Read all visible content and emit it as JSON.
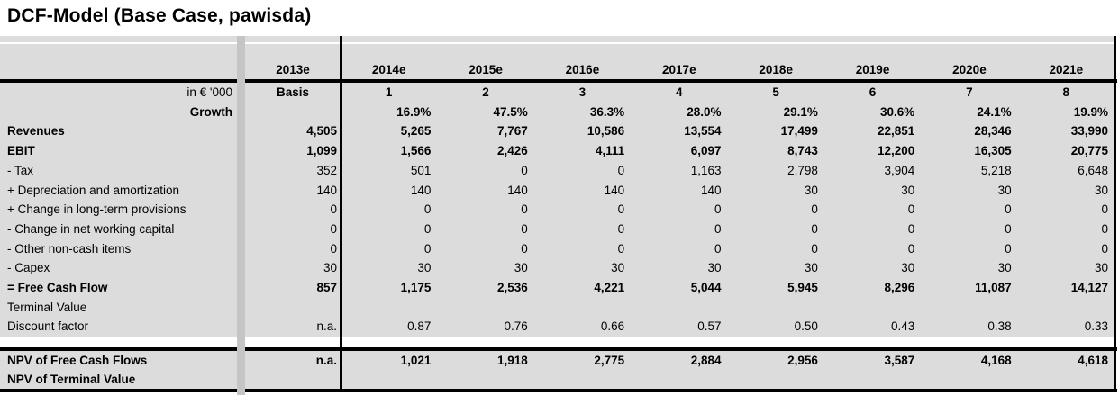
{
  "title": "DCF-Model (Base Case, pawisda)",
  "colors": {
    "cell_bg": "#dcdcdc",
    "spacer_band": "#c5c5c5",
    "rule": "#000000",
    "text": "#000000",
    "page_bg": "#ffffff"
  },
  "table": {
    "unit_label": "in € '000",
    "columns": [
      "2013e",
      "2014e",
      "2015e",
      "2016e",
      "2017e",
      "2018e",
      "2019e",
      "2020e",
      "2021e"
    ],
    "periods": [
      "Basis",
      "1",
      "2",
      "3",
      "4",
      "5",
      "6",
      "7",
      "8"
    ],
    "rows": [
      {
        "label": "Growth",
        "label_bold": true,
        "label_right": true,
        "values_bold": true,
        "values": [
          "",
          "16.9%",
          "47.5%",
          "36.3%",
          "28.0%",
          "29.1%",
          "30.6%",
          "24.1%",
          "19.9%"
        ]
      },
      {
        "label": "Revenues",
        "label_bold": true,
        "values_bold": true,
        "values": [
          "4,505",
          "5,265",
          "7,767",
          "10,586",
          "13,554",
          "17,499",
          "22,851",
          "28,346",
          "33,990"
        ]
      },
      {
        "label": "EBIT",
        "label_bold": true,
        "values_bold": true,
        "values": [
          "1,099",
          "1,566",
          "2,426",
          "4,111",
          "6,097",
          "8,743",
          "12,200",
          "16,305",
          "20,775"
        ]
      },
      {
        "label": "- Tax",
        "values": [
          "352",
          "501",
          "0",
          "0",
          "1,163",
          "2,798",
          "3,904",
          "5,218",
          "6,648"
        ]
      },
      {
        "label": "+ Depreciation and amortization",
        "values": [
          "140",
          "140",
          "140",
          "140",
          "140",
          "30",
          "30",
          "30",
          "30"
        ]
      },
      {
        "label": "+ Change in long-term provisions",
        "values": [
          "0",
          "0",
          "0",
          "0",
          "0",
          "0",
          "0",
          "0",
          "0"
        ]
      },
      {
        "label": "- Change in net working capital",
        "values": [
          "0",
          "0",
          "0",
          "0",
          "0",
          "0",
          "0",
          "0",
          "0"
        ]
      },
      {
        "label": "- Other non-cash items",
        "values": [
          "0",
          "0",
          "0",
          "0",
          "0",
          "0",
          "0",
          "0",
          "0"
        ]
      },
      {
        "label": "- Capex",
        "values": [
          "30",
          "30",
          "30",
          "30",
          "30",
          "30",
          "30",
          "30",
          "30"
        ]
      },
      {
        "label": "= Free Cash Flow",
        "label_bold": true,
        "values_bold": true,
        "values": [
          "857",
          "1,175",
          "2,536",
          "4,221",
          "5,044",
          "5,945",
          "8,296",
          "11,087",
          "14,127"
        ]
      },
      {
        "label": "Terminal Value",
        "values": [
          "",
          "",
          "",
          "",
          "",
          "",
          "",
          "",
          ""
        ]
      },
      {
        "label": "Discount factor",
        "values": [
          "n.a.",
          "0.87",
          "0.76",
          "0.66",
          "0.57",
          "0.50",
          "0.43",
          "0.38",
          "0.33"
        ]
      }
    ],
    "npv_rows": [
      {
        "label": "NPV of Free Cash Flows",
        "label_bold": true,
        "values_bold": true,
        "values": [
          "n.a.",
          "1,021",
          "1,918",
          "2,775",
          "2,884",
          "2,956",
          "3,587",
          "4,168",
          "4,618"
        ]
      },
      {
        "label": "NPV of Terminal Value",
        "label_bold": true,
        "values": [
          "",
          "",
          "",
          "",
          "",
          "",
          "",
          "",
          ""
        ]
      }
    ]
  }
}
